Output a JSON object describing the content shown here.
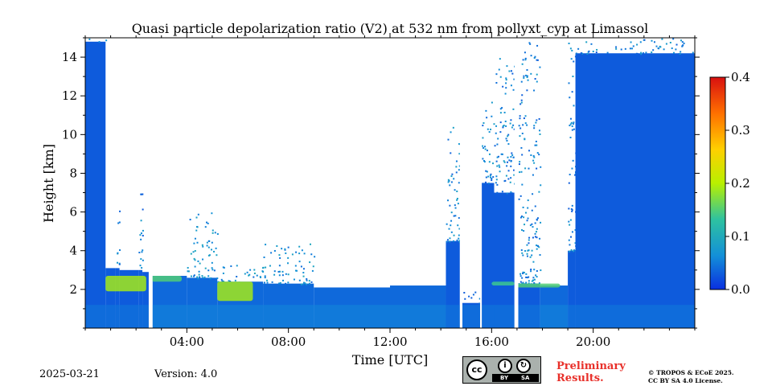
{
  "chart_data": {
    "type": "heatmap",
    "title": "Quasi particle depolarization ratio (V2) at 532 nm from pollyxt_cyp at Limassol",
    "xlabel": "Time [UTC]",
    "ylabel": "Height [km]",
    "xlim_hours": [
      0,
      24
    ],
    "ylim_km": [
      0,
      15
    ],
    "x_ticks": [
      {
        "value": 4,
        "label": "04:00"
      },
      {
        "value": 8,
        "label": "08:00"
      },
      {
        "value": 12,
        "label": "12:00"
      },
      {
        "value": 16,
        "label": "16:00"
      },
      {
        "value": 20,
        "label": "20:00"
      }
    ],
    "y_ticks": [
      {
        "value": 2,
        "label": "2"
      },
      {
        "value": 4,
        "label": "4"
      },
      {
        "value": 6,
        "label": "6"
      },
      {
        "value": 8,
        "label": "8"
      },
      {
        "value": 10,
        "label": "10"
      },
      {
        "value": 12,
        "label": "12"
      },
      {
        "value": 14,
        "label": "14"
      }
    ],
    "colorbar": {
      "range": [
        0,
        0.4
      ],
      "ticks": [
        "0.0",
        "0.1",
        "0.2",
        "0.3",
        "0.4"
      ],
      "colormap": "jet",
      "colors": [
        "#0a2fe0",
        "#1390d8",
        "#2ec2a0",
        "#b8f000",
        "#ffd000",
        "#ff7000",
        "#d81010"
      ]
    },
    "signal_columns": [
      {
        "t0": 0.0,
        "t1": 0.8,
        "top_km": 14.8,
        "sparse_to_km": 15,
        "value": 0.03
      },
      {
        "t0": 0.8,
        "t1": 1.2,
        "top_km": 3.1,
        "sparse_to_km": 3.1,
        "value": 0.03
      },
      {
        "t0": 1.2,
        "t1": 1.35,
        "top_km": 3.1,
        "sparse_to_km": 7.0,
        "value": 0.03
      },
      {
        "t0": 1.35,
        "t1": 2.1,
        "top_km": 3.0,
        "sparse_to_km": 3.0,
        "value": 0.03
      },
      {
        "t0": 2.1,
        "t1": 2.25,
        "top_km": 3.0,
        "sparse_to_km": 10.0,
        "value": 0.03
      },
      {
        "t0": 2.25,
        "t1": 2.5,
        "top_km": 2.9,
        "sparse_to_km": 2.9,
        "value": 0.03
      },
      {
        "t0": 2.65,
        "t1": 4.0,
        "top_km": 2.7,
        "sparse_to_km": 2.7,
        "value": 0.04
      },
      {
        "t0": 4.0,
        "t1": 5.2,
        "top_km": 2.6,
        "sparse_to_km": 6.0,
        "value": 0.04
      },
      {
        "t0": 5.2,
        "t1": 7.0,
        "top_km": 2.4,
        "sparse_to_km": 3.5,
        "value": 0.04
      },
      {
        "t0": 7.0,
        "t1": 9.0,
        "top_km": 2.3,
        "sparse_to_km": 4.5,
        "value": 0.04
      },
      {
        "t0": 9.0,
        "t1": 12.0,
        "top_km": 2.1,
        "sparse_to_km": 2.2,
        "value": 0.04
      },
      {
        "t0": 12.0,
        "t1": 14.2,
        "top_km": 2.2,
        "sparse_to_km": 2.3,
        "value": 0.04
      },
      {
        "t0": 14.2,
        "t1": 14.75,
        "top_km": 4.5,
        "sparse_to_km": 10.5,
        "value": 0.03
      },
      {
        "t0": 14.85,
        "t1": 15.55,
        "top_km": 1.3,
        "sparse_to_km": 2.0,
        "value": 0.03
      },
      {
        "t0": 15.6,
        "t1": 16.1,
        "top_km": 7.5,
        "sparse_to_km": 12.0,
        "value": 0.03
      },
      {
        "t0": 16.1,
        "t1": 16.9,
        "top_km": 7.0,
        "sparse_to_km": 14.0,
        "value": 0.03
      },
      {
        "t0": 17.05,
        "t1": 17.9,
        "top_km": 2.3,
        "sparse_to_km": 15.0,
        "value": 0.03
      },
      {
        "t0": 17.9,
        "t1": 19.0,
        "top_km": 2.2,
        "sparse_to_km": 2.2,
        "value": 0.04
      },
      {
        "t0": 19.0,
        "t1": 19.3,
        "top_km": 4.0,
        "sparse_to_km": 15.0,
        "value": 0.03
      },
      {
        "t0": 19.3,
        "t1": 24.0,
        "top_km": 14.2,
        "sparse_to_km": 15.0,
        "value": 0.03
      }
    ],
    "dust_features": [
      {
        "t0": 0.8,
        "t1": 2.4,
        "h0_km": 1.9,
        "h1_km": 2.7,
        "value": 0.19
      },
      {
        "t0": 2.6,
        "t1": 3.8,
        "h0_km": 2.4,
        "h1_km": 2.7,
        "value": 0.15
      },
      {
        "t0": 5.2,
        "t1": 6.6,
        "h0_km": 1.4,
        "h1_km": 2.4,
        "value": 0.19
      },
      {
        "t0": 16.0,
        "t1": 16.9,
        "h0_km": 2.2,
        "h1_km": 2.4,
        "value": 0.14
      },
      {
        "t0": 17.0,
        "t1": 18.7,
        "h0_km": 2.1,
        "h1_km": 2.3,
        "value": 0.15
      }
    ],
    "data_gaps": [
      {
        "t0": 2.5,
        "t1": 2.65
      },
      {
        "t0": 14.75,
        "t1": 14.85
      },
      {
        "t0": 15.55,
        "t1": 15.6
      },
      {
        "t0": 16.9,
        "t1": 17.05
      }
    ]
  },
  "footer": {
    "date": "2025-03-21",
    "version": "Version: 4.0",
    "license_badge": {
      "by": "BY",
      "sa": "SA",
      "cc": "cc"
    },
    "preliminary": "Preliminary\nResults.",
    "copyright_1": "© TROPOS & ECoE 2025.",
    "copyright_2": "CC BY SA 4.0 License."
  }
}
